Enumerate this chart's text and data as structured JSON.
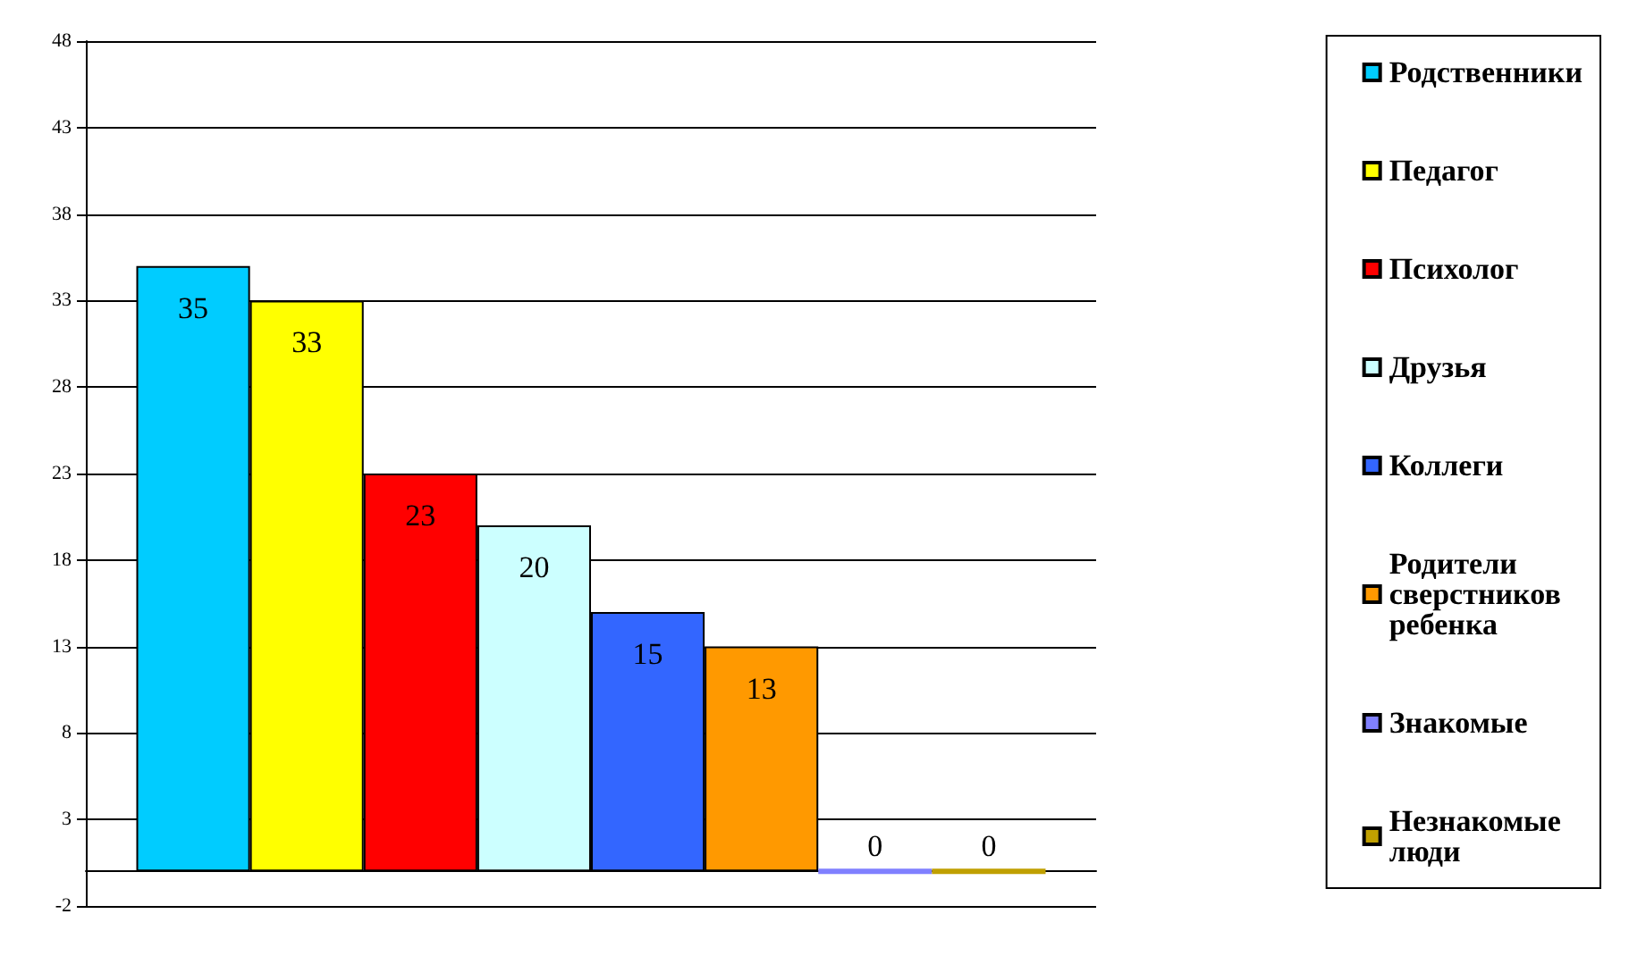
{
  "chart_data": {
    "type": "bar",
    "categories": [
      null
    ],
    "series": [
      {
        "name": "Родственники",
        "color": "#00ccff",
        "values": [
          35
        ]
      },
      {
        "name": "Педагог",
        "color": "#ffff00",
        "values": [
          33
        ]
      },
      {
        "name": "Психолог",
        "color": "#ff0000",
        "values": [
          23
        ]
      },
      {
        "name": "Друзья",
        "color": "#ccffff",
        "values": [
          20
        ]
      },
      {
        "name": "Коллеги",
        "color": "#3366ff",
        "values": [
          15
        ]
      },
      {
        "name": "Родители сверстников ребенка",
        "color": "#ff9900",
        "values": [
          13
        ]
      },
      {
        "name": "Знакомые",
        "color": "#8080ff",
        "values": [
          0
        ]
      },
      {
        "name": "Незнакомые люди",
        "color": "#c0a000",
        "values": [
          0
        ]
      }
    ],
    "ylim": [
      -2,
      48
    ],
    "yticks": [
      -2,
      3,
      8,
      13,
      18,
      23,
      28,
      33,
      38,
      43,
      48
    ],
    "grid": "y",
    "legend": "right",
    "data_labels": true
  }
}
